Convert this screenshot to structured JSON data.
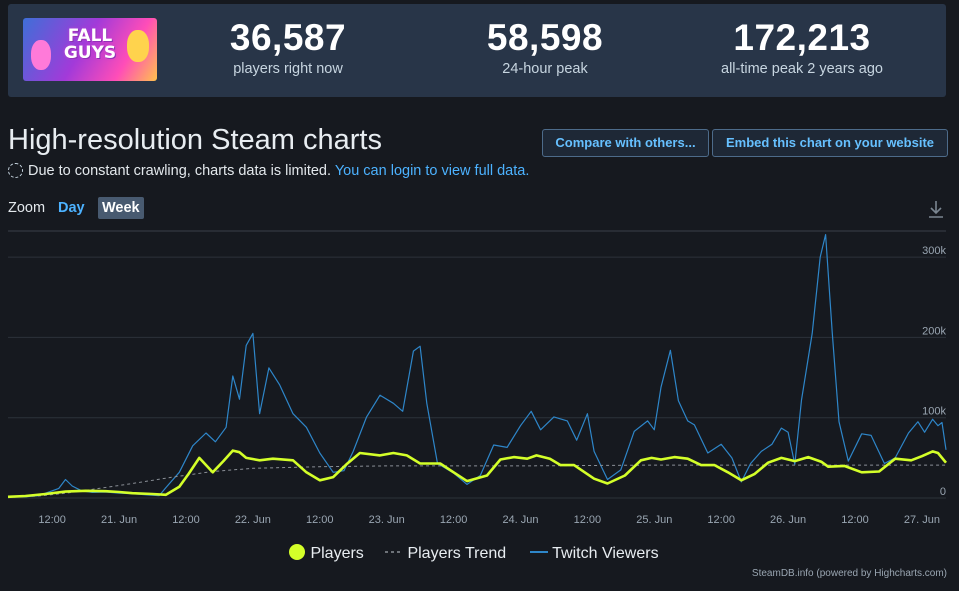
{
  "stats": [
    {
      "value": "36,587",
      "label": "players right now"
    },
    {
      "value": "58,598",
      "label": "24-hour peak"
    },
    {
      "value": "172,213",
      "label": "all-time peak 2 years ago"
    }
  ],
  "game_logo_text": "FALL GUYS",
  "heading": "High-resolution Steam charts",
  "notice": {
    "text": "Due to constant crawling, charts data is limited.",
    "link": "You can login to view full data."
  },
  "buttons": {
    "compare": "Compare with others...",
    "embed": "Embed this chart on your website"
  },
  "zoom": {
    "label": "Zoom",
    "day": "Day",
    "week": "Week"
  },
  "icons": {
    "download": "download-icon",
    "loading": "dashed-circle-icon"
  },
  "colors": {
    "players": "#d4ff29",
    "trend": "#8a8f96",
    "twitch": "#2e86c9",
    "background": "#16191f",
    "panel": "#283548",
    "link": "#4cb2ff"
  },
  "credits": "SteamDB.info (powered by Highcharts.com)",
  "chart_data": {
    "type": "line",
    "title": "",
    "xlabel": "",
    "ylabel": "",
    "x_unit": "days since 20 Jun 00:00",
    "x_ticks": [
      {
        "x": 0.5,
        "label": "12:00"
      },
      {
        "x": 1.0,
        "label": "21. Jun"
      },
      {
        "x": 1.5,
        "label": "12:00"
      },
      {
        "x": 2.0,
        "label": "22. Jun"
      },
      {
        "x": 2.5,
        "label": "12:00"
      },
      {
        "x": 3.0,
        "label": "23. Jun"
      },
      {
        "x": 3.5,
        "label": "12:00"
      },
      {
        "x": 4.0,
        "label": "24. Jun"
      },
      {
        "x": 4.5,
        "label": "12:00"
      },
      {
        "x": 5.0,
        "label": "25. Jun"
      },
      {
        "x": 5.5,
        "label": "12:00"
      },
      {
        "x": 6.0,
        "label": "26. Jun"
      },
      {
        "x": 6.5,
        "label": "12:00"
      },
      {
        "x": 7.0,
        "label": "27. Jun"
      }
    ],
    "y_ticks": [
      {
        "value": 0,
        "label": "0"
      },
      {
        "value": 100000,
        "label": "100k"
      },
      {
        "value": 200000,
        "label": "200k"
      },
      {
        "value": 300000,
        "label": "300k"
      }
    ],
    "xlim": [
      0.17,
      7.18
    ],
    "ylim": [
      0,
      340000
    ],
    "grid": true,
    "legend_position": "bottom-center",
    "series": [
      {
        "name": "Players",
        "points": [
          [
            0.17,
            1500
          ],
          [
            0.3,
            2500
          ],
          [
            0.45,
            5000
          ],
          [
            0.6,
            8000
          ],
          [
            0.75,
            9000
          ],
          [
            0.9,
            8500
          ],
          [
            1.0,
            7500
          ],
          [
            1.1,
            6000
          ],
          [
            1.25,
            5000
          ],
          [
            1.35,
            4000
          ],
          [
            1.45,
            14000
          ],
          [
            1.52,
            30000
          ],
          [
            1.6,
            50000
          ],
          [
            1.7,
            32000
          ],
          [
            1.78,
            46000
          ],
          [
            1.85,
            59000
          ],
          [
            1.9,
            57000
          ],
          [
            1.95,
            50000
          ],
          [
            2.05,
            47000
          ],
          [
            2.15,
            49000
          ],
          [
            2.3,
            47000
          ],
          [
            2.4,
            32000
          ],
          [
            2.5,
            22000
          ],
          [
            2.6,
            26000
          ],
          [
            2.7,
            42000
          ],
          [
            2.8,
            56000
          ],
          [
            2.95,
            53000
          ],
          [
            3.05,
            56000
          ],
          [
            3.15,
            53000
          ],
          [
            3.25,
            43000
          ],
          [
            3.4,
            43000
          ],
          [
            3.5,
            32000
          ],
          [
            3.6,
            21000
          ],
          [
            3.75,
            28000
          ],
          [
            3.85,
            48000
          ],
          [
            3.95,
            51000
          ],
          [
            4.05,
            49000
          ],
          [
            4.12,
            53000
          ],
          [
            4.22,
            49000
          ],
          [
            4.3,
            41000
          ],
          [
            4.4,
            41000
          ],
          [
            4.55,
            24000
          ],
          [
            4.65,
            18000
          ],
          [
            4.78,
            28000
          ],
          [
            4.9,
            47000
          ],
          [
            4.98,
            50000
          ],
          [
            5.05,
            48000
          ],
          [
            5.15,
            51000
          ],
          [
            5.25,
            49000
          ],
          [
            5.35,
            41000
          ],
          [
            5.45,
            41000
          ],
          [
            5.55,
            32000
          ],
          [
            5.65,
            22000
          ],
          [
            5.75,
            30000
          ],
          [
            5.85,
            44000
          ],
          [
            5.95,
            50000
          ],
          [
            6.05,
            46000
          ],
          [
            6.15,
            51000
          ],
          [
            6.25,
            45000
          ],
          [
            6.3,
            39000
          ],
          [
            6.42,
            40000
          ],
          [
            6.55,
            32000
          ],
          [
            6.68,
            33000
          ],
          [
            6.8,
            49000
          ],
          [
            6.92,
            47000
          ],
          [
            7.0,
            52000
          ],
          [
            7.08,
            58000
          ],
          [
            7.12,
            56000
          ],
          [
            7.18,
            44000
          ]
        ]
      },
      {
        "name": "Players Trend",
        "points": [
          [
            0.17,
            800
          ],
          [
            0.4,
            2500
          ],
          [
            0.6,
            6000
          ],
          [
            0.85,
            12000
          ],
          [
            1.1,
            18000
          ],
          [
            1.4,
            26000
          ],
          [
            1.7,
            33000
          ],
          [
            2.0,
            37000
          ],
          [
            2.5,
            39000
          ],
          [
            3.0,
            40000
          ],
          [
            4.0,
            40000
          ],
          [
            5.0,
            41000
          ],
          [
            6.0,
            41000
          ],
          [
            7.18,
            41000
          ]
        ]
      },
      {
        "name": "Twitch Viewers",
        "points": [
          [
            0.17,
            2000
          ],
          [
            0.3,
            1500
          ],
          [
            0.4,
            3000
          ],
          [
            0.5,
            9000
          ],
          [
            0.55,
            12000
          ],
          [
            0.6,
            23000
          ],
          [
            0.65,
            15000
          ],
          [
            0.72,
            9000
          ],
          [
            0.8,
            7000
          ],
          [
            0.9,
            7500
          ],
          [
            1.0,
            6000
          ],
          [
            1.1,
            5500
          ],
          [
            1.2,
            4000
          ],
          [
            1.3,
            3000
          ],
          [
            1.35,
            13000
          ],
          [
            1.45,
            32000
          ],
          [
            1.55,
            65000
          ],
          [
            1.65,
            81000
          ],
          [
            1.72,
            70000
          ],
          [
            1.8,
            88000
          ],
          [
            1.85,
            152000
          ],
          [
            1.9,
            123000
          ],
          [
            1.95,
            190000
          ],
          [
            2.0,
            205000
          ],
          [
            2.05,
            105000
          ],
          [
            2.12,
            162000
          ],
          [
            2.2,
            141000
          ],
          [
            2.3,
            105000
          ],
          [
            2.4,
            88000
          ],
          [
            2.5,
            56000
          ],
          [
            2.6,
            32000
          ],
          [
            2.68,
            34000
          ],
          [
            2.75,
            58000
          ],
          [
            2.85,
            101000
          ],
          [
            2.95,
            128000
          ],
          [
            3.05,
            118000
          ],
          [
            3.12,
            108000
          ],
          [
            3.2,
            183000
          ],
          [
            3.25,
            189000
          ],
          [
            3.3,
            118000
          ],
          [
            3.38,
            43000
          ],
          [
            3.5,
            31000
          ],
          [
            3.6,
            17000
          ],
          [
            3.7,
            28000
          ],
          [
            3.8,
            66000
          ],
          [
            3.9,
            63000
          ],
          [
            4.0,
            90000
          ],
          [
            4.08,
            108000
          ],
          [
            4.15,
            85000
          ],
          [
            4.25,
            101000
          ],
          [
            4.35,
            96000
          ],
          [
            4.42,
            72000
          ],
          [
            4.5,
            105000
          ],
          [
            4.55,
            58000
          ],
          [
            4.65,
            23000
          ],
          [
            4.75,
            35000
          ],
          [
            4.85,
            83000
          ],
          [
            4.95,
            96000
          ],
          [
            5.0,
            85000
          ],
          [
            5.05,
            138000
          ],
          [
            5.12,
            184000
          ],
          [
            5.18,
            121000
          ],
          [
            5.25,
            96000
          ],
          [
            5.3,
            91000
          ],
          [
            5.4,
            56000
          ],
          [
            5.5,
            67000
          ],
          [
            5.58,
            50000
          ],
          [
            5.65,
            20000
          ],
          [
            5.72,
            43000
          ],
          [
            5.8,
            58000
          ],
          [
            5.88,
            67000
          ],
          [
            5.95,
            87000
          ],
          [
            6.0,
            82000
          ],
          [
            6.05,
            42000
          ],
          [
            6.1,
            122000
          ],
          [
            6.18,
            205000
          ],
          [
            6.24,
            300000
          ],
          [
            6.28,
            328000
          ],
          [
            6.33,
            205000
          ],
          [
            6.38,
            95000
          ],
          [
            6.45,
            46000
          ],
          [
            6.55,
            80000
          ],
          [
            6.62,
            78000
          ],
          [
            6.72,
            43000
          ],
          [
            6.8,
            50000
          ],
          [
            6.9,
            81000
          ],
          [
            6.97,
            95000
          ],
          [
            7.02,
            82000
          ],
          [
            7.08,
            98000
          ],
          [
            7.12,
            90000
          ],
          [
            7.15,
            94000
          ],
          [
            7.18,
            60000
          ]
        ]
      }
    ]
  }
}
